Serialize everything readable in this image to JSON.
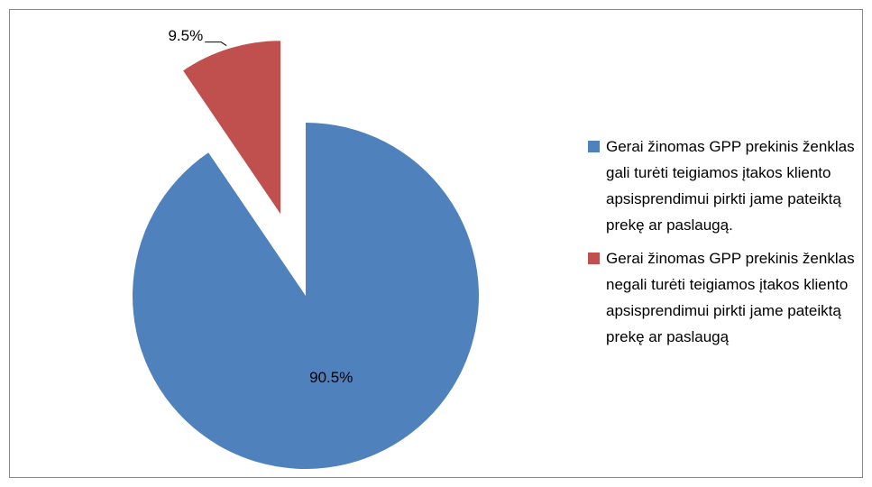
{
  "chart_data": {
    "type": "pie",
    "categories": [
      "Gerai žinomas GPP prekinis ženklas gali turėti teigiamos įtakos kliento apsisprendimui pirkti jame pateiktą prekę ar paslaugą.",
      "Gerai žinomas GPP prekinis ženklas negali turėti teigiamos įtakos kliento apsisprendimui pirkti jame pateiktą prekę ar paslaugą"
    ],
    "values": [
      90.5,
      9.5
    ],
    "value_labels": [
      "90.5%",
      "9.5%"
    ],
    "colors": [
      "#4f81bd",
      "#c0504d"
    ],
    "explode": [
      false,
      true
    ],
    "legend": "right"
  }
}
